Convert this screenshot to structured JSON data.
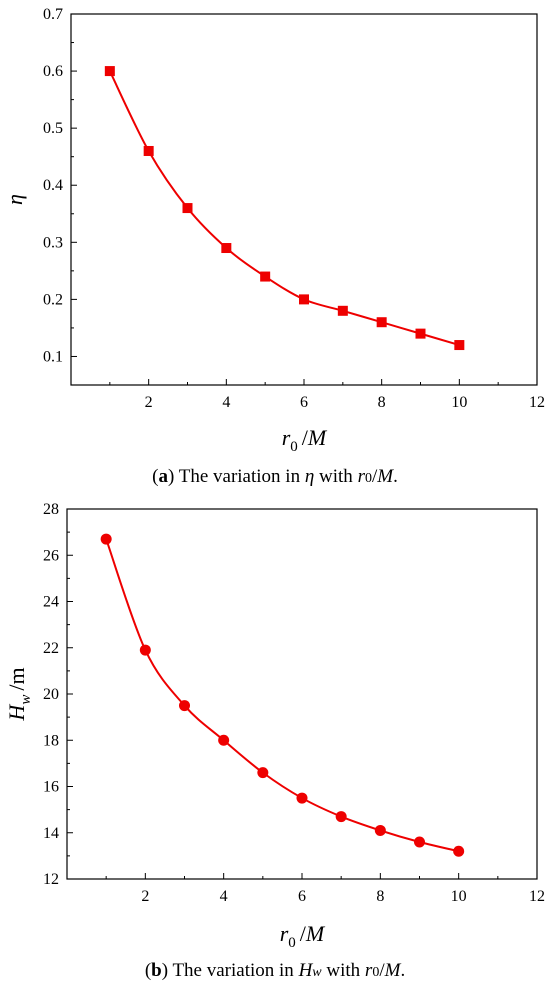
{
  "chart_data": [
    {
      "type": "line",
      "marker": "square",
      "color": "#ee0000",
      "x": [
        1,
        2,
        3,
        4,
        5,
        6,
        7,
        8,
        9,
        10
      ],
      "series": [
        {
          "values": [
            0.6,
            0.46,
            0.36,
            0.29,
            0.24,
            0.2,
            0.18,
            0.16,
            0.14,
            0.12
          ]
        }
      ],
      "xlim": [
        0,
        12
      ],
      "ylim": [
        0.05,
        0.7
      ],
      "xticks": [
        "2",
        "4",
        "6",
        "8",
        "10",
        "12"
      ],
      "yticks": [
        "0.1",
        "0.2",
        "0.3",
        "0.4",
        "0.5",
        "0.6",
        "0.7"
      ],
      "xlabel": "r0 /M",
      "ylabel": "η",
      "grid": false,
      "caption": {
        "tag": "(a)",
        "text_before": " The variation in ",
        "symbol": "η",
        "text_mid": " with ",
        "var": "r0",
        "text_after": "/M."
      }
    },
    {
      "type": "line",
      "marker": "circle",
      "color": "#ee0000",
      "x": [
        1,
        2,
        3,
        4,
        5,
        6,
        7,
        8,
        9,
        10
      ],
      "series": [
        {
          "values": [
            26.7,
            21.9,
            19.5,
            18.0,
            16.6,
            15.5,
            14.7,
            14.1,
            13.6,
            13.2
          ]
        }
      ],
      "xlim": [
        0,
        12
      ],
      "ylim": [
        12,
        28
      ],
      "xticks": [
        "2",
        "4",
        "6",
        "8",
        "10",
        "12"
      ],
      "yticks": [
        "12",
        "14",
        "16",
        "18",
        "20",
        "22",
        "24",
        "26",
        "28"
      ],
      "xlabel": "r0 /M",
      "ylabel": "Hw /m",
      "grid": false,
      "caption": {
        "tag": "(b)",
        "text_before": " The variation in ",
        "symbol": "Hw",
        "text_mid": " with ",
        "var": "r0",
        "text_after": "/M."
      }
    }
  ]
}
